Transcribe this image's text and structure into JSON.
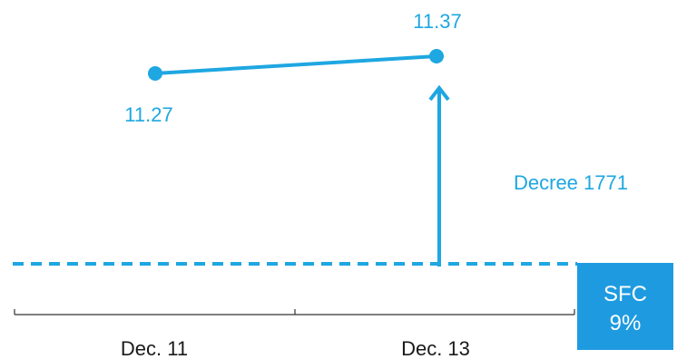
{
  "colors": {
    "series": "#1ea7e1",
    "arrow": "#1ea7e1",
    "reference": "#1ea7e1",
    "badge_bg": "#1e9be0",
    "badge_text": "#ffffff",
    "axis": "#333333",
    "axis_text": "#1a1a1a"
  },
  "chart_data": {
    "type": "line",
    "title": "",
    "xlabel": "",
    "ylabel": "",
    "categories": [
      "Dec. 11",
      "Dec. 13"
    ],
    "series": [
      {
        "values": [
          11.27,
          11.37
        ],
        "data_labels": [
          "11.27",
          "11.37"
        ]
      }
    ],
    "reference_line": {
      "style": "dashed",
      "badge_line1": "SFC",
      "badge_line2": "9%"
    },
    "annotation": {
      "text": "Decree 1771",
      "type": "arrow-up",
      "category": "Dec. 13"
    },
    "legend": "none",
    "grid": false
  }
}
